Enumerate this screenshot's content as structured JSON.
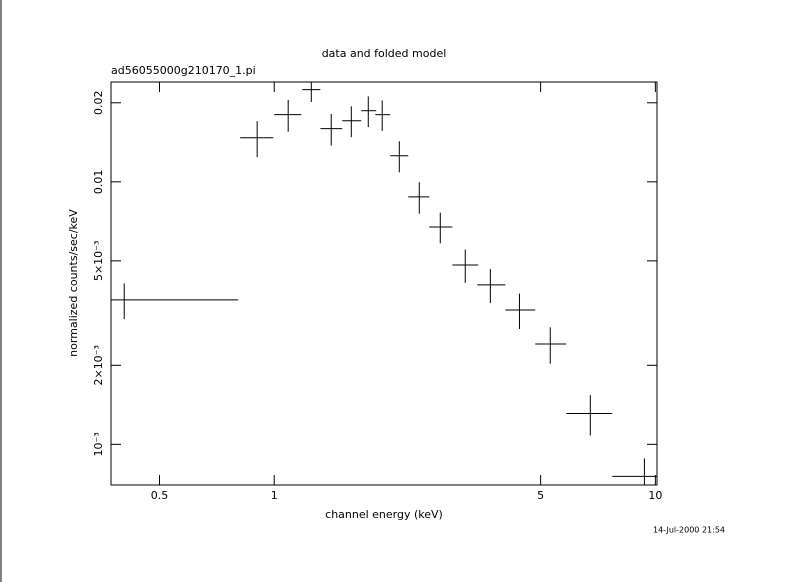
{
  "chart_data": {
    "type": "errorbar",
    "title": "data and folded model",
    "subtitle": "ad56055000g210170_1.pi",
    "x_label": "channel energy (keV)",
    "y_label": "normalized counts/sec/keV",
    "timestamp": "14-Jul-2000 21:54",
    "log_x": true,
    "log_y": true,
    "color": "#000000",
    "xlim": [
      0.373,
      10.1
    ],
    "ylim": [
      0.0007,
      0.024
    ],
    "xticks": [
      0.5,
      1,
      5,
      10
    ],
    "yticks": [
      0.02,
      0.01,
      {
        "value": 0.005,
        "label": "5×10⁻³"
      },
      {
        "value": 0.002,
        "label": "2×10⁻³"
      },
      {
        "value": 0.001,
        "label": "10⁻³"
      }
    ],
    "x": [
      0.404,
      0.902,
      1.088,
      1.251,
      1.411,
      1.593,
      1.765,
      1.92,
      2.129,
      2.402,
      2.727,
      3.171,
      3.69,
      4.4,
      5.3,
      6.75,
      9.36
    ],
    "xerr": [
      [
        0.031,
        0.4
      ],
      [
        0.088,
        0.092
      ],
      [
        0.088,
        0.089
      ],
      [
        0.067,
        0.07
      ],
      [
        0.089,
        0.097
      ],
      [
        0.085,
        0.099
      ],
      [
        0.073,
        0.087
      ],
      [
        0.078,
        0.096
      ],
      [
        0.113,
        0.118
      ],
      [
        0.155,
        0.149
      ],
      [
        0.176,
        0.206
      ],
      [
        0.238,
        0.259
      ],
      [
        0.28,
        0.35
      ],
      [
        0.36,
        0.44
      ],
      [
        0.46,
        0.54
      ],
      [
        0.91,
        0.96
      ],
      [
        1.65,
        0.74
      ]
    ],
    "y": [
      0.00355,
      0.01472,
      0.01802,
      0.02244,
      0.01594,
      0.01709,
      0.01866,
      0.01802,
      0.01257,
      0.00876,
      0.00673,
      0.00482,
      0.00405,
      0.00325,
      0.00241,
      0.00131,
      0.000755
    ],
    "yerr": [
      0.00055,
      0.0023,
      0.0025,
      0.0023,
      0.0022,
      0.0023,
      0.0025,
      0.0024,
      0.0017,
      0.0012,
      0.0009,
      0.0007,
      0.0006,
      0.0005,
      0.00038,
      0.00023,
      0.00013
    ]
  }
}
